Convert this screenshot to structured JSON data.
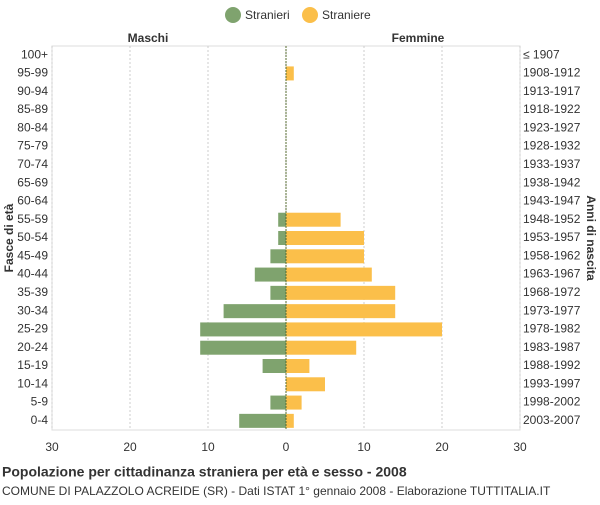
{
  "chart_data": {
    "type": "pyramid",
    "title": "Popolazione per cittadinanza straniera per età e sesso - 2008",
    "subtitle": "COMUNE DI PALAZZOLO ACREIDE (SR) - Dati ISTAT 1° gennaio 2008 - Elaborazione TUTTITALIA.IT",
    "left_label": "Maschi",
    "right_label": "Femmine",
    "y_label": "Fasce di età",
    "y2_label": "Anni di nascita",
    "categories": [
      "100+",
      "95-99",
      "90-94",
      "85-89",
      "80-84",
      "75-79",
      "70-74",
      "65-69",
      "60-64",
      "55-59",
      "50-54",
      "45-49",
      "40-44",
      "35-39",
      "30-34",
      "25-29",
      "20-24",
      "15-19",
      "10-14",
      "5-9",
      "0-4"
    ],
    "categories2": [
      "≤ 1907",
      "1908-1912",
      "1913-1917",
      "1918-1922",
      "1923-1927",
      "1928-1932",
      "1933-1937",
      "1938-1942",
      "1943-1947",
      "1948-1952",
      "1953-1957",
      "1958-1962",
      "1963-1967",
      "1968-1972",
      "1973-1977",
      "1978-1982",
      "1983-1987",
      "1988-1992",
      "1993-1997",
      "1998-2002",
      "2003-2007"
    ],
    "series": [
      {
        "name": "Stranieri",
        "color": "#7fa36e",
        "values": [
          0,
          0,
          0,
          0,
          0,
          0,
          0,
          0,
          0,
          1,
          1,
          2,
          4,
          2,
          8,
          11,
          11,
          3,
          0,
          2,
          6
        ]
      },
      {
        "name": "Straniere",
        "color": "#fbbf4a",
        "values": [
          0,
          1,
          0,
          0,
          0,
          0,
          0,
          0,
          0,
          7,
          10,
          10,
          11,
          14,
          14,
          20,
          9,
          3,
          5,
          2,
          1
        ]
      }
    ],
    "xlim": [
      -30,
      30
    ],
    "xticks": [
      {
        "value": -30,
        "label": "30"
      },
      {
        "value": -20,
        "label": "20"
      },
      {
        "value": -10,
        "label": "10"
      },
      0,
      10,
      20,
      30
    ],
    "grid": true
  }
}
